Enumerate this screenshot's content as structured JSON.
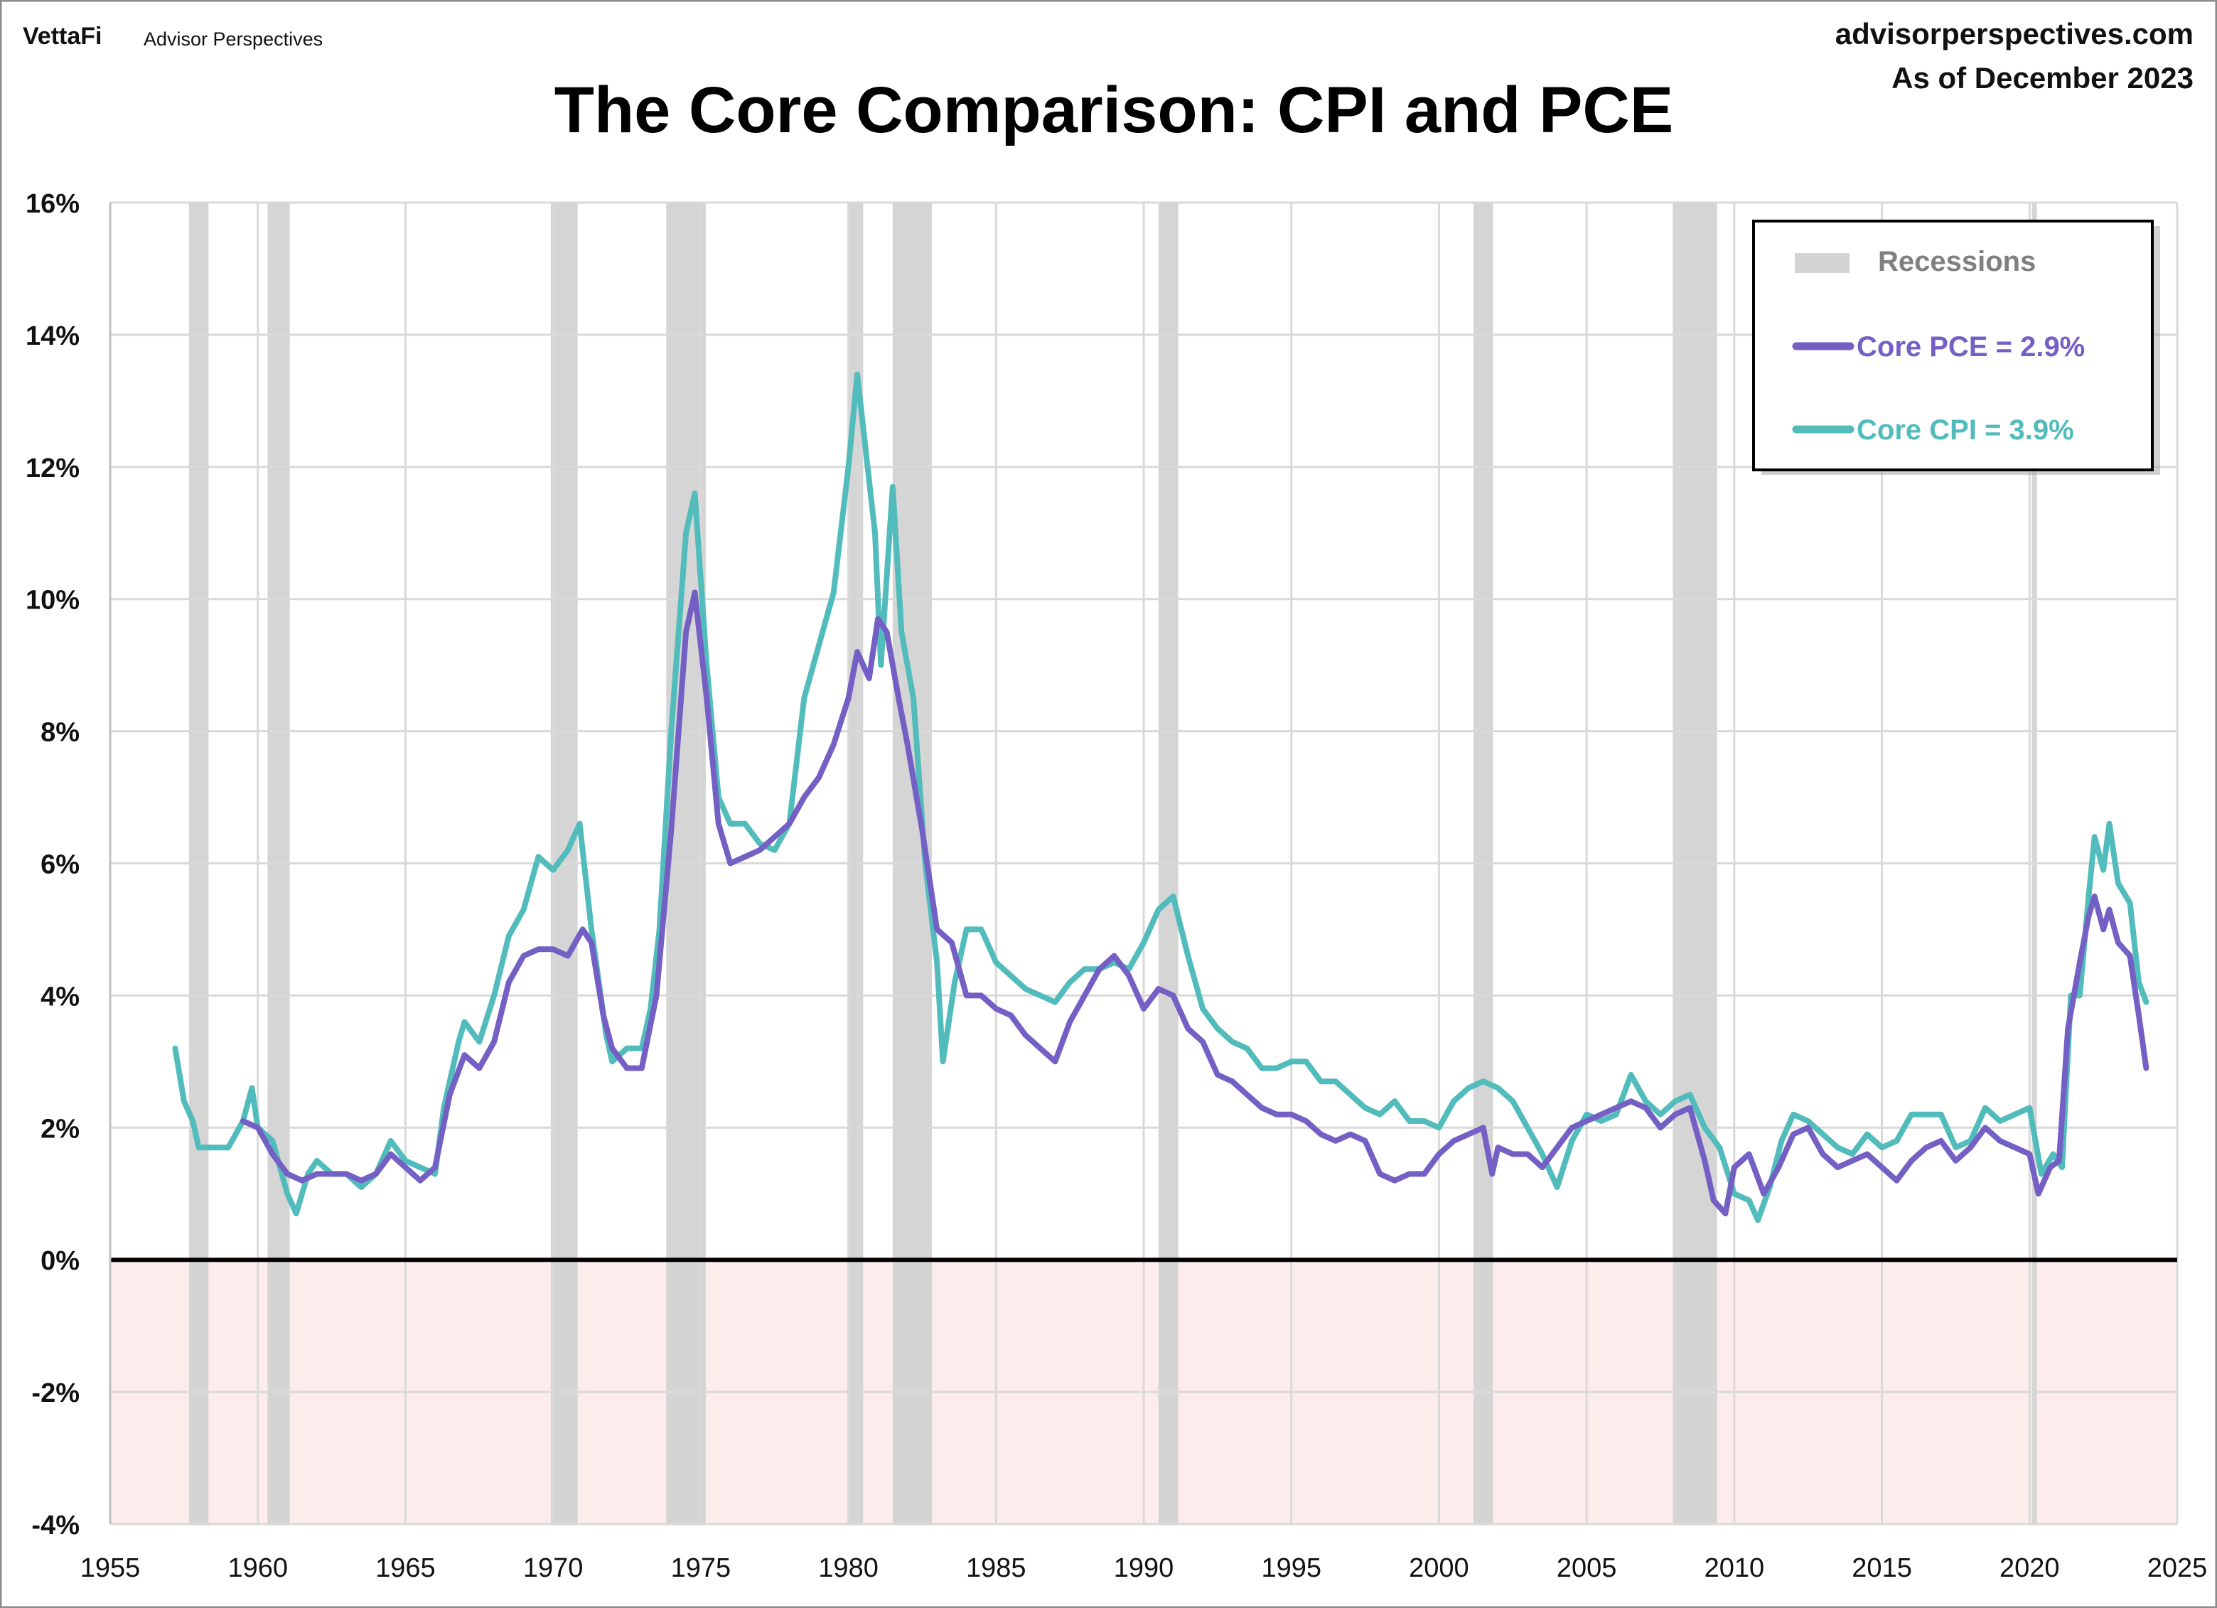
{
  "header": {
    "logo_vettafi": "VettaFi",
    "logo_sub": "Advisor Perspectives",
    "site": "advisorperspectives.com",
    "as_of": "As of December 2023"
  },
  "chart_data": {
    "type": "line",
    "title": "The Core Comparison: CPI and PCE",
    "xlabel": "",
    "ylabel": "",
    "xlim": [
      1955,
      2025
    ],
    "ylim": [
      -4,
      16
    ],
    "x_ticks": [
      "1955",
      "1960",
      "1965",
      "1970",
      "1975",
      "1980",
      "1985",
      "1990",
      "1995",
      "2000",
      "2005",
      "2010",
      "2015",
      "2020",
      "2025"
    ],
    "y_ticks": [
      "16%",
      "14%",
      "12%",
      "10%",
      "8%",
      "6%",
      "4%",
      "2%",
      "0%",
      "-2%",
      "-4%"
    ],
    "grid": true,
    "legend_placement": "top-right",
    "negative_region_color": "#fdecec",
    "legend": {
      "recessions": "Recessions",
      "pce": "Core PCE = 2.9%",
      "cpi": "Core CPI =  3.9%"
    },
    "recessions": [
      [
        1957.67,
        1958.33
      ],
      [
        1960.33,
        1961.08
      ],
      [
        1969.92,
        1970.83
      ],
      [
        1973.83,
        1975.17
      ],
      [
        1980.0,
        1980.5
      ],
      [
        1981.5,
        1982.83
      ],
      [
        1990.5,
        1991.17
      ],
      [
        2001.17,
        2001.83
      ],
      [
        2007.92,
        2009.42
      ],
      [
        2020.08,
        2020.25
      ]
    ],
    "series": [
      {
        "name": "Core PCE",
        "color": "#7460c4",
        "points": [
          [
            1959.5,
            2.1
          ],
          [
            1960,
            2.0
          ],
          [
            1960.5,
            1.6
          ],
          [
            1961,
            1.3
          ],
          [
            1961.5,
            1.2
          ],
          [
            1962,
            1.3
          ],
          [
            1962.5,
            1.3
          ],
          [
            1963,
            1.3
          ],
          [
            1963.5,
            1.2
          ],
          [
            1964,
            1.3
          ],
          [
            1964.5,
            1.6
          ],
          [
            1965,
            1.4
          ],
          [
            1965.5,
            1.2
          ],
          [
            1966,
            1.4
          ],
          [
            1966.5,
            2.5
          ],
          [
            1967,
            3.1
          ],
          [
            1967.5,
            2.9
          ],
          [
            1968,
            3.3
          ],
          [
            1968.5,
            4.2
          ],
          [
            1969,
            4.6
          ],
          [
            1969.5,
            4.7
          ],
          [
            1970,
            4.7
          ],
          [
            1970.5,
            4.6
          ],
          [
            1971,
            5.0
          ],
          [
            1971.3,
            4.8
          ],
          [
            1971.7,
            3.7
          ],
          [
            1972,
            3.2
          ],
          [
            1972.5,
            2.9
          ],
          [
            1973,
            2.9
          ],
          [
            1973.5,
            4.0
          ],
          [
            1974,
            6.5
          ],
          [
            1974.5,
            9.5
          ],
          [
            1974.8,
            10.1
          ],
          [
            1975.2,
            8.5
          ],
          [
            1975.6,
            6.6
          ],
          [
            1976,
            6.0
          ],
          [
            1976.5,
            6.1
          ],
          [
            1977,
            6.2
          ],
          [
            1977.5,
            6.4
          ],
          [
            1978,
            6.6
          ],
          [
            1978.5,
            7.0
          ],
          [
            1979,
            7.3
          ],
          [
            1979.5,
            7.8
          ],
          [
            1980,
            8.5
          ],
          [
            1980.3,
            9.2
          ],
          [
            1980.7,
            8.8
          ],
          [
            1981,
            9.7
          ],
          [
            1981.3,
            9.5
          ],
          [
            1981.7,
            8.5
          ],
          [
            1982,
            7.8
          ],
          [
            1982.5,
            6.5
          ],
          [
            1983,
            5.0
          ],
          [
            1983.5,
            4.8
          ],
          [
            1984,
            4.0
          ],
          [
            1984.5,
            4.0
          ],
          [
            1985,
            3.8
          ],
          [
            1985.5,
            3.7
          ],
          [
            1986,
            3.4
          ],
          [
            1986.5,
            3.2
          ],
          [
            1987,
            3.0
          ],
          [
            1987.5,
            3.6
          ],
          [
            1988,
            4.0
          ],
          [
            1988.5,
            4.4
          ],
          [
            1989,
            4.6
          ],
          [
            1989.5,
            4.3
          ],
          [
            1990,
            3.8
          ],
          [
            1990.5,
            4.1
          ],
          [
            1991,
            4.0
          ],
          [
            1991.5,
            3.5
          ],
          [
            1992,
            3.3
          ],
          [
            1992.5,
            2.8
          ],
          [
            1993,
            2.7
          ],
          [
            1993.5,
            2.5
          ],
          [
            1994,
            2.3
          ],
          [
            1994.5,
            2.2
          ],
          [
            1995,
            2.2
          ],
          [
            1995.5,
            2.1
          ],
          [
            1996,
            1.9
          ],
          [
            1996.5,
            1.8
          ],
          [
            1997,
            1.9
          ],
          [
            1997.5,
            1.8
          ],
          [
            1998,
            1.3
          ],
          [
            1998.5,
            1.2
          ],
          [
            1999,
            1.3
          ],
          [
            1999.5,
            1.3
          ],
          [
            2000,
            1.6
          ],
          [
            2000.5,
            1.8
          ],
          [
            2001,
            1.9
          ],
          [
            2001.5,
            2.0
          ],
          [
            2001.8,
            1.3
          ],
          [
            2002,
            1.7
          ],
          [
            2002.5,
            1.6
          ],
          [
            2003,
            1.6
          ],
          [
            2003.5,
            1.4
          ],
          [
            2004,
            1.7
          ],
          [
            2004.5,
            2.0
          ],
          [
            2005,
            2.1
          ],
          [
            2005.5,
            2.2
          ],
          [
            2006,
            2.3
          ],
          [
            2006.5,
            2.4
          ],
          [
            2007,
            2.3
          ],
          [
            2007.5,
            2.0
          ],
          [
            2008,
            2.2
          ],
          [
            2008.5,
            2.3
          ],
          [
            2009,
            1.5
          ],
          [
            2009.3,
            0.9
          ],
          [
            2009.7,
            0.7
          ],
          [
            2010,
            1.4
          ],
          [
            2010.5,
            1.6
          ],
          [
            2011,
            1.0
          ],
          [
            2011.5,
            1.4
          ],
          [
            2012,
            1.9
          ],
          [
            2012.5,
            2.0
          ],
          [
            2013,
            1.6
          ],
          [
            2013.5,
            1.4
          ],
          [
            2014,
            1.5
          ],
          [
            2014.5,
            1.6
          ],
          [
            2015,
            1.4
          ],
          [
            2015.5,
            1.2
          ],
          [
            2016,
            1.5
          ],
          [
            2016.5,
            1.7
          ],
          [
            2017,
            1.8
          ],
          [
            2017.5,
            1.5
          ],
          [
            2018,
            1.7
          ],
          [
            2018.5,
            2.0
          ],
          [
            2019,
            1.8
          ],
          [
            2019.5,
            1.7
          ],
          [
            2020,
            1.6
          ],
          [
            2020.3,
            1.0
          ],
          [
            2020.7,
            1.4
          ],
          [
            2021,
            1.5
          ],
          [
            2021.3,
            3.5
          ],
          [
            2021.7,
            4.5
          ],
          [
            2022,
            5.2
          ],
          [
            2022.2,
            5.5
          ],
          [
            2022.5,
            5.0
          ],
          [
            2022.7,
            5.3
          ],
          [
            2023,
            4.8
          ],
          [
            2023.4,
            4.6
          ],
          [
            2023.7,
            3.7
          ],
          [
            2023.95,
            2.9
          ]
        ]
      },
      {
        "name": "Core CPI",
        "color": "#52bcbc",
        "points": [
          [
            1957.2,
            3.2
          ],
          [
            1957.5,
            2.4
          ],
          [
            1957.8,
            2.1
          ],
          [
            1958,
            1.7
          ],
          [
            1959,
            1.7
          ],
          [
            1959.5,
            2.1
          ],
          [
            1959.8,
            2.6
          ],
          [
            1960,
            2.0
          ],
          [
            1960.5,
            1.8
          ],
          [
            1961,
            1.0
          ],
          [
            1961.3,
            0.7
          ],
          [
            1961.7,
            1.3
          ],
          [
            1962,
            1.5
          ],
          [
            1962.5,
            1.3
          ],
          [
            1963,
            1.3
          ],
          [
            1963.5,
            1.1
          ],
          [
            1964,
            1.3
          ],
          [
            1964.5,
            1.8
          ],
          [
            1965,
            1.5
          ],
          [
            1965.5,
            1.4
          ],
          [
            1966,
            1.3
          ],
          [
            1966.3,
            2.3
          ],
          [
            1966.8,
            3.3
          ],
          [
            1967,
            3.6
          ],
          [
            1967.5,
            3.3
          ],
          [
            1968,
            4.0
          ],
          [
            1968.5,
            4.9
          ],
          [
            1969,
            5.3
          ],
          [
            1969.5,
            6.1
          ],
          [
            1970,
            5.9
          ],
          [
            1970.5,
            6.2
          ],
          [
            1970.9,
            6.6
          ],
          [
            1971.3,
            5.0
          ],
          [
            1971.8,
            3.4
          ],
          [
            1972,
            3.0
          ],
          [
            1972.5,
            3.2
          ],
          [
            1973,
            3.2
          ],
          [
            1973.3,
            3.8
          ],
          [
            1973.6,
            5.0
          ],
          [
            1974,
            8.0
          ],
          [
            1974.5,
            11.0
          ],
          [
            1974.8,
            11.6
          ],
          [
            1975.2,
            9.0
          ],
          [
            1975.6,
            7.0
          ],
          [
            1976,
            6.6
          ],
          [
            1976.5,
            6.6
          ],
          [
            1977,
            6.3
          ],
          [
            1977.5,
            6.2
          ],
          [
            1978,
            6.6
          ],
          [
            1978.5,
            8.5
          ],
          [
            1979,
            9.3
          ],
          [
            1979.5,
            10.1
          ],
          [
            1980,
            12.0
          ],
          [
            1980.3,
            13.4
          ],
          [
            1980.6,
            12.2
          ],
          [
            1980.9,
            11.0
          ],
          [
            1981.1,
            9.0
          ],
          [
            1981.5,
            11.7
          ],
          [
            1981.8,
            9.5
          ],
          [
            1982.2,
            8.5
          ],
          [
            1982.6,
            6.0
          ],
          [
            1983,
            4.5
          ],
          [
            1983.2,
            3.0
          ],
          [
            1983.6,
            4.2
          ],
          [
            1984,
            5.0
          ],
          [
            1984.5,
            5.0
          ],
          [
            1985,
            4.5
          ],
          [
            1985.5,
            4.3
          ],
          [
            1986,
            4.1
          ],
          [
            1986.5,
            4.0
          ],
          [
            1987,
            3.9
          ],
          [
            1987.5,
            4.2
          ],
          [
            1988,
            4.4
          ],
          [
            1988.5,
            4.4
          ],
          [
            1989,
            4.5
          ],
          [
            1989.5,
            4.4
          ],
          [
            1990,
            4.8
          ],
          [
            1990.5,
            5.3
          ],
          [
            1991,
            5.5
          ],
          [
            1991.5,
            4.6
          ],
          [
            1992,
            3.8
          ],
          [
            1992.5,
            3.5
          ],
          [
            1993,
            3.3
          ],
          [
            1993.5,
            3.2
          ],
          [
            1994,
            2.9
          ],
          [
            1994.5,
            2.9
          ],
          [
            1995,
            3.0
          ],
          [
            1995.5,
            3.0
          ],
          [
            1996,
            2.7
          ],
          [
            1996.5,
            2.7
          ],
          [
            1997,
            2.5
          ],
          [
            1997.5,
            2.3
          ],
          [
            1998,
            2.2
          ],
          [
            1998.5,
            2.4
          ],
          [
            1999,
            2.1
          ],
          [
            1999.5,
            2.1
          ],
          [
            2000,
            2.0
          ],
          [
            2000.5,
            2.4
          ],
          [
            2001,
            2.6
          ],
          [
            2001.5,
            2.7
          ],
          [
            2002,
            2.6
          ],
          [
            2002.5,
            2.4
          ],
          [
            2003,
            2.0
          ],
          [
            2003.5,
            1.6
          ],
          [
            2004,
            1.1
          ],
          [
            2004.5,
            1.8
          ],
          [
            2005,
            2.2
          ],
          [
            2005.5,
            2.1
          ],
          [
            2006,
            2.2
          ],
          [
            2006.5,
            2.8
          ],
          [
            2007,
            2.4
          ],
          [
            2007.5,
            2.2
          ],
          [
            2008,
            2.4
          ],
          [
            2008.5,
            2.5
          ],
          [
            2009,
            2.0
          ],
          [
            2009.5,
            1.7
          ],
          [
            2010,
            1.0
          ],
          [
            2010.5,
            0.9
          ],
          [
            2010.8,
            0.6
          ],
          [
            2011.2,
            1.1
          ],
          [
            2011.6,
            1.8
          ],
          [
            2012,
            2.2
          ],
          [
            2012.5,
            2.1
          ],
          [
            2013,
            1.9
          ],
          [
            2013.5,
            1.7
          ],
          [
            2014,
            1.6
          ],
          [
            2014.5,
            1.9
          ],
          [
            2015,
            1.7
          ],
          [
            2015.5,
            1.8
          ],
          [
            2016,
            2.2
          ],
          [
            2016.5,
            2.2
          ],
          [
            2017,
            2.2
          ],
          [
            2017.5,
            1.7
          ],
          [
            2018,
            1.8
          ],
          [
            2018.5,
            2.3
          ],
          [
            2019,
            2.1
          ],
          [
            2019.5,
            2.2
          ],
          [
            2020,
            2.3
          ],
          [
            2020.4,
            1.3
          ],
          [
            2020.8,
            1.6
          ],
          [
            2021.1,
            1.4
          ],
          [
            2021.4,
            4.0
          ],
          [
            2021.7,
            4.0
          ],
          [
            2022,
            5.5
          ],
          [
            2022.2,
            6.4
          ],
          [
            2022.5,
            5.9
          ],
          [
            2022.7,
            6.6
          ],
          [
            2023,
            5.7
          ],
          [
            2023.4,
            5.4
          ],
          [
            2023.7,
            4.2
          ],
          [
            2023.95,
            3.9
          ]
        ]
      }
    ],
    "colors": {
      "recession": "#d3d3d3",
      "axis_zero": "#000000",
      "grid": "#d9d9d9"
    }
  }
}
